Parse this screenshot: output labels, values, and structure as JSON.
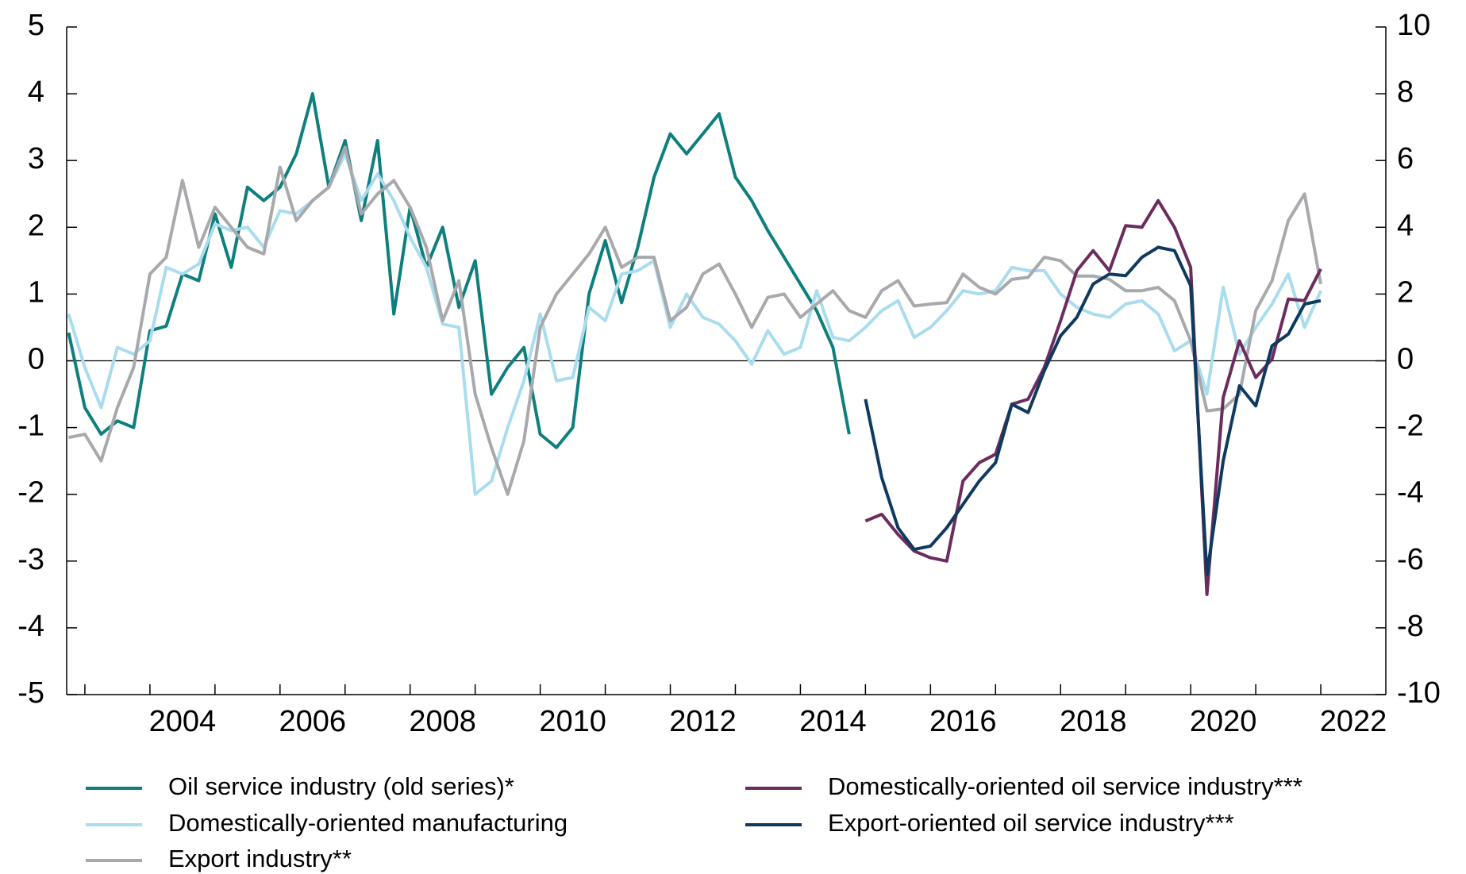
{
  "chart_data": {
    "type": "line",
    "x": [
      2002.75,
      2003,
      2003.25,
      2003.5,
      2003.75,
      2004,
      2004.25,
      2004.5,
      2004.75,
      2005,
      2005.25,
      2005.5,
      2005.75,
      2006,
      2006.25,
      2006.5,
      2006.75,
      2007,
      2007.25,
      2007.5,
      2007.75,
      2008,
      2008.25,
      2008.5,
      2008.75,
      2009,
      2009.25,
      2009.5,
      2009.75,
      2010,
      2010.25,
      2010.5,
      2010.75,
      2011,
      2011.25,
      2011.5,
      2011.75,
      2012,
      2012.25,
      2012.5,
      2012.75,
      2013,
      2013.25,
      2013.5,
      2013.75,
      2014,
      2014.25,
      2014.5,
      2014.75,
      2015,
      2015.25,
      2015.5,
      2015.75,
      2016,
      2016.25,
      2016.5,
      2016.75,
      2017,
      2017.25,
      2017.5,
      2017.75,
      2018,
      2018.25,
      2018.5,
      2018.75,
      2019,
      2019.25,
      2019.5,
      2019.75,
      2020,
      2020.25,
      2020.5,
      2020.75,
      2021,
      2021.25,
      2021.5,
      2021.75,
      2022
    ],
    "series": [
      {
        "name": "Oil service industry (old series)*",
        "color": "#0e7f7d",
        "values": [
          0.42,
          -0.7,
          -1.1,
          -0.9,
          -1.0,
          0.45,
          0.52,
          1.3,
          1.2,
          2.2,
          1.4,
          2.6,
          2.4,
          2.6,
          3.1,
          4.0,
          2.6,
          3.3,
          2.1,
          3.3,
          0.7,
          2.3,
          1.4,
          2.0,
          0.8,
          1.5,
          -0.5,
          -0.1,
          0.2,
          -1.1,
          -1.3,
          -1.0,
          1.0,
          1.8,
          0.87,
          1.7,
          2.75,
          3.4,
          3.1,
          3.4,
          3.7,
          2.75,
          2.4,
          1.95,
          1.55,
          1.15,
          0.75,
          0.2,
          -1.1,
          null,
          null,
          null,
          null,
          null,
          null,
          null,
          null,
          null,
          null,
          null,
          null,
          null,
          null,
          null,
          null,
          null,
          null,
          null,
          null,
          null,
          null,
          null,
          null,
          null,
          null,
          null,
          null,
          null
        ]
      },
      {
        "name": "Domestically-oriented manufacturing",
        "color": "#a9dcee",
        "values": [
          0.7,
          -0.1,
          -0.7,
          0.2,
          0.1,
          0.3,
          1.4,
          1.3,
          1.45,
          2.05,
          1.95,
          2.0,
          1.7,
          2.25,
          2.2,
          2.4,
          2.6,
          3.1,
          2.4,
          2.8,
          2.4,
          1.85,
          1.4,
          0.55,
          0.5,
          -2.0,
          -1.8,
          -1.0,
          -0.3,
          0.7,
          -0.3,
          -0.25,
          0.8,
          0.6,
          1.3,
          1.35,
          1.5,
          0.5,
          1.0,
          0.65,
          0.55,
          0.3,
          -0.05,
          0.45,
          0.1,
          0.2,
          1.05,
          0.35,
          0.3,
          0.5,
          0.75,
          0.9,
          0.35,
          0.5,
          0.75,
          1.05,
          1.0,
          1.05,
          1.4,
          1.35,
          1.35,
          1.0,
          0.8,
          0.7,
          0.65,
          0.85,
          0.9,
          0.7,
          0.15,
          0.3,
          -0.5,
          1.1,
          0.1,
          0.5,
          0.85,
          1.3,
          0.5,
          1.05
        ]
      },
      {
        "name": "Export industry**",
        "color": "#a7a9ac",
        "values": [
          -1.15,
          -1.1,
          -1.5,
          -0.7,
          -0.1,
          1.3,
          1.55,
          2.7,
          1.7,
          2.3,
          2.0,
          1.7,
          1.6,
          2.9,
          2.1,
          2.4,
          2.6,
          3.2,
          2.2,
          2.5,
          2.7,
          2.3,
          1.7,
          0.6,
          1.2,
          -0.5,
          -1.3,
          -2.0,
          -1.2,
          0.5,
          1.0,
          1.3,
          1.6,
          2.0,
          1.4,
          1.55,
          1.55,
          0.6,
          0.8,
          1.3,
          1.45,
          1.0,
          0.5,
          0.95,
          1.0,
          0.65,
          0.85,
          1.05,
          0.75,
          0.65,
          1.05,
          1.2,
          0.82,
          0.85,
          0.87,
          1.3,
          1.1,
          1.0,
          1.22,
          1.25,
          1.55,
          1.5,
          1.27,
          1.27,
          1.22,
          1.05,
          1.05,
          1.1,
          0.9,
          0.3,
          -0.75,
          -0.72,
          -0.5,
          0.75,
          1.2,
          2.1,
          2.5,
          1.15
        ]
      },
      {
        "name": "Domestically-oriented oil service industry***",
        "color": "#6c2c5d",
        "axis": "y2",
        "values": [
          null,
          null,
          null,
          null,
          null,
          null,
          null,
          null,
          null,
          null,
          null,
          null,
          null,
          null,
          null,
          null,
          null,
          null,
          null,
          null,
          null,
          null,
          null,
          null,
          null,
          null,
          null,
          null,
          null,
          null,
          null,
          null,
          null,
          null,
          null,
          null,
          null,
          null,
          null,
          null,
          null,
          null,
          null,
          null,
          null,
          null,
          null,
          null,
          null,
          -4.8,
          -4.6,
          -5.2,
          -5.7,
          -5.9,
          -6.0,
          -3.6,
          -3.05,
          -2.8,
          -1.3,
          -1.15,
          -0.2,
          1.2,
          2.7,
          3.3,
          2.7,
          4.05,
          4.0,
          4.8,
          4.0,
          2.8,
          -7.0,
          -1.1,
          0.6,
          -0.5,
          0.05,
          1.85,
          1.8,
          2.75
        ]
      },
      {
        "name": "Export-oriented oil service industry***",
        "color": "#0f3a5f",
        "axis": "y2",
        "values": [
          null,
          null,
          null,
          null,
          null,
          null,
          null,
          null,
          null,
          null,
          null,
          null,
          null,
          null,
          null,
          null,
          null,
          null,
          null,
          null,
          null,
          null,
          null,
          null,
          null,
          null,
          null,
          null,
          null,
          null,
          null,
          null,
          null,
          null,
          null,
          null,
          null,
          null,
          null,
          null,
          null,
          null,
          null,
          null,
          null,
          null,
          null,
          null,
          null,
          -1.15,
          -3.5,
          -5.0,
          -5.65,
          -5.55,
          -5.0,
          -4.3,
          -3.6,
          -3.05,
          -1.3,
          -1.55,
          -0.3,
          0.75,
          1.3,
          2.3,
          2.6,
          2.55,
          3.1,
          3.4,
          3.3,
          2.25,
          -6.4,
          -3.0,
          -0.75,
          -1.35,
          0.45,
          0.8,
          1.7,
          1.8
        ]
      }
    ],
    "xlim": [
      2002.72,
      2023
    ],
    "xticks": [
      2003,
      2004,
      2005,
      2006,
      2007,
      2008,
      2009,
      2010,
      2011,
      2012,
      2013,
      2014,
      2015,
      2016,
      2017,
      2018,
      2019,
      2020,
      2021,
      2022
    ],
    "xtick_labels": [
      2004,
      2006,
      2008,
      2010,
      2012,
      2014,
      2016,
      2018,
      2020,
      2022
    ],
    "ylim": [
      -5,
      5
    ],
    "yticks": [
      -5,
      -4,
      -3,
      -2,
      -1,
      0,
      1,
      2,
      3,
      4,
      5
    ],
    "y2lim": [
      -10,
      10
    ],
    "y2ticks": [
      -10,
      -8,
      -6,
      -4,
      -2,
      0,
      2,
      4,
      6,
      8,
      10
    ]
  }
}
